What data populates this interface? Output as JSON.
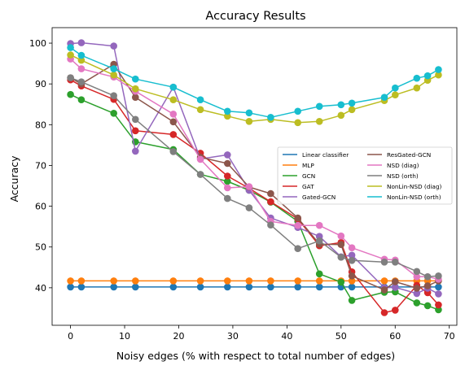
{
  "chart_data": {
    "type": "line",
    "title": "Accuracy Results",
    "xlabel": "Noisy edges (% with respect to total number of edges)",
    "ylabel": "Accuracy",
    "xlim": [
      -3.4,
      71.4
    ],
    "ylim": [
      30.8,
      103.8
    ],
    "xticks": [
      0,
      10,
      20,
      30,
      40,
      50,
      60,
      70
    ],
    "yticks": [
      40,
      50,
      60,
      70,
      80,
      90,
      100
    ],
    "grid": false,
    "legend": {
      "placement": "center-right",
      "columns": 2
    },
    "series": [
      {
        "name": "Linear classifier",
        "color": "#1f77b4",
        "x": [
          0,
          2,
          8,
          12,
          19,
          24,
          29,
          33,
          37,
          42,
          46,
          50,
          52,
          58,
          60,
          64,
          66,
          68
        ],
        "y": [
          40.2,
          40.2,
          40.2,
          40.2,
          40.2,
          40.2,
          40.2,
          40.2,
          40.2,
          40.2,
          40.2,
          40.2,
          40.2,
          40.2,
          40.2,
          40.2,
          40.2,
          40.2
        ]
      },
      {
        "name": "MLP",
        "color": "#ff7f0e",
        "x": [
          0,
          2,
          8,
          12,
          19,
          24,
          29,
          33,
          37,
          42,
          46,
          50,
          52,
          58,
          60,
          64,
          66,
          68
        ],
        "y": [
          41.7,
          41.7,
          41.7,
          41.7,
          41.7,
          41.7,
          41.7,
          41.7,
          41.7,
          41.7,
          41.7,
          41.7,
          41.7,
          41.7,
          41.7,
          41.7,
          41.7,
          41.7
        ]
      },
      {
        "name": "GCN",
        "color": "#2ca02c",
        "x": [
          0,
          2,
          8,
          12,
          19,
          24,
          29,
          33,
          37,
          42,
          46,
          50,
          52,
          58,
          60,
          64,
          66,
          68
        ],
        "y": [
          87.4,
          86.1,
          82.8,
          75.8,
          73.9,
          67.8,
          66.1,
          63.9,
          61.0,
          56.3,
          43.4,
          41.4,
          36.9,
          38.9,
          39.0,
          36.3,
          35.6,
          34.6
        ]
      },
      {
        "name": "GAT",
        "color": "#d62728",
        "x": [
          0,
          2,
          8,
          12,
          19,
          24,
          29,
          33,
          37,
          42,
          46,
          50,
          52,
          58,
          60,
          64,
          66,
          68
        ],
        "y": [
          91.0,
          89.5,
          86.2,
          78.5,
          77.6,
          73.0,
          67.4,
          64.4,
          61.1,
          56.9,
          50.3,
          51.1,
          43.9,
          33.9,
          34.5,
          40.6,
          38.8,
          35.8
        ]
      },
      {
        "name": "Gated-GCN",
        "color": "#9467bd",
        "x": [
          0,
          2,
          8,
          12,
          19,
          24,
          29,
          33,
          37,
          42,
          46,
          50,
          52,
          58,
          60,
          64,
          66,
          68
        ],
        "y": [
          99.9,
          100.1,
          99.3,
          73.5,
          89.2,
          71.6,
          72.6,
          63.9,
          57.1,
          54.8,
          52.6,
          47.6,
          48.0,
          40.0,
          40.1,
          38.6,
          39.9,
          38.5
        ]
      },
      {
        "name": "ResGated-GCN",
        "color": "#8c564b",
        "x": [
          0,
          2,
          8,
          12,
          19,
          24,
          29,
          33,
          37,
          42,
          46,
          50,
          52,
          58,
          60,
          64,
          66,
          68
        ],
        "y": [
          91.5,
          90.0,
          94.8,
          86.7,
          80.7,
          72.0,
          70.5,
          64.7,
          63.1,
          57.1,
          50.7,
          50.6,
          42.9,
          39.5,
          41.5,
          39.9,
          40.5,
          41.7
        ]
      },
      {
        "name": "NSD (diag)",
        "color": "#e377c2",
        "x": [
          0,
          2,
          8,
          12,
          19,
          24,
          29,
          33,
          37,
          42,
          46,
          50,
          52,
          58,
          60,
          64,
          66,
          68
        ],
        "y": [
          96.1,
          93.7,
          91.7,
          88.2,
          82.6,
          71.5,
          64.5,
          64.8,
          56.3,
          55.3,
          55.3,
          52.7,
          49.8,
          47.0,
          46.8,
          42.7,
          42.7,
          42.1
        ]
      },
      {
        "name": "NSD (orth)",
        "color": "#7f7f7f",
        "x": [
          0,
          2,
          8,
          12,
          19,
          24,
          29,
          33,
          37,
          42,
          46,
          50,
          52,
          58,
          60,
          64,
          66,
          68
        ],
        "y": [
          91.5,
          90.5,
          87.1,
          81.3,
          73.4,
          67.8,
          61.9,
          59.6,
          55.4,
          49.6,
          51.5,
          47.5,
          46.7,
          46.3,
          46.3,
          44.0,
          42.7,
          42.9
        ]
      },
      {
        "name": "NonLin-NSD (diag)",
        "color": "#bcbd22",
        "x": [
          0,
          2,
          8,
          12,
          19,
          24,
          29,
          33,
          37,
          42,
          46,
          50,
          52,
          58,
          60,
          64,
          66,
          68
        ],
        "y": [
          97.1,
          95.8,
          92.2,
          88.8,
          86.1,
          83.7,
          82.1,
          80.8,
          81.3,
          80.5,
          80.8,
          82.3,
          83.7,
          85.9,
          87.3,
          89.0,
          90.9,
          92.2
        ]
      },
      {
        "name": "NonLin-NSD (orth)",
        "color": "#17becf",
        "x": [
          0,
          2,
          8,
          12,
          19,
          24,
          29,
          33,
          37,
          42,
          46,
          50,
          52,
          58,
          60,
          64,
          66,
          68
        ],
        "y": [
          98.9,
          97.0,
          93.7,
          91.2,
          89.2,
          86.1,
          83.3,
          82.9,
          81.8,
          83.3,
          84.5,
          84.9,
          85.3,
          86.7,
          89.0,
          91.4,
          92.0,
          93.5
        ]
      }
    ]
  }
}
